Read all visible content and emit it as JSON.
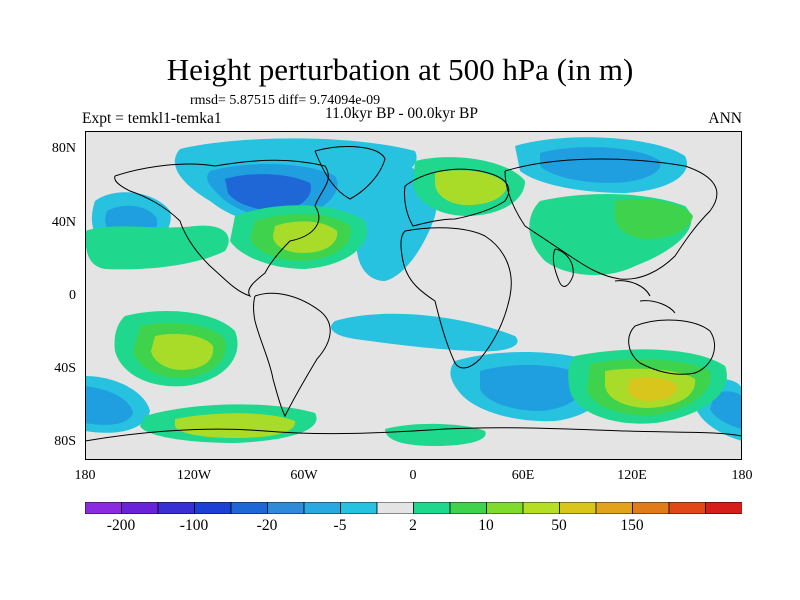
{
  "header": {
    "title": "Height perturbation at 500 hPa (in m)",
    "stats": "rmsd= 5.87515 diff= 9.74094e-09",
    "experiment": "Expt = temkl1-temka1",
    "period": "11.0kyr BP - 00.0kyr BP",
    "season": "ANN"
  },
  "axes": {
    "lat_labels": [
      "80N",
      "40N",
      "0",
      "40S",
      "80S"
    ],
    "lon_labels": [
      "180",
      "120W",
      "60W",
      "0",
      "60E",
      "120E",
      "180"
    ]
  },
  "colorbar": {
    "colors": [
      "#8a2be2",
      "#6a22d9",
      "#3a2fd3",
      "#1c3fd4",
      "#1f67d7",
      "#2f8bd9",
      "#2aa9e0",
      "#26c2df",
      "#e4e4e4",
      "#1fd88e",
      "#3ed24d",
      "#7fdc2f",
      "#b4df25",
      "#d8c61d",
      "#e3a21c",
      "#e07b1a",
      "#e04818",
      "#d51d1a"
    ],
    "tick_labels": [
      "-200",
      "-100",
      "-20",
      "-5",
      "2",
      "10",
      "50",
      "150"
    ]
  },
  "map_data": {
    "bounds": {
      "lon": [
        -180,
        180
      ],
      "lat": [
        -90,
        90
      ]
    },
    "colors": {
      "background": "#e4e4e4",
      "l1": "#26c2df",
      "l2": "#1f9ee0",
      "l3": "#1f67d7",
      "p1": "#1fd88e",
      "p2": "#3ed24d",
      "p3": "#a8dc28",
      "p4": "#d8c61d",
      "coast": "#000000"
    }
  }
}
